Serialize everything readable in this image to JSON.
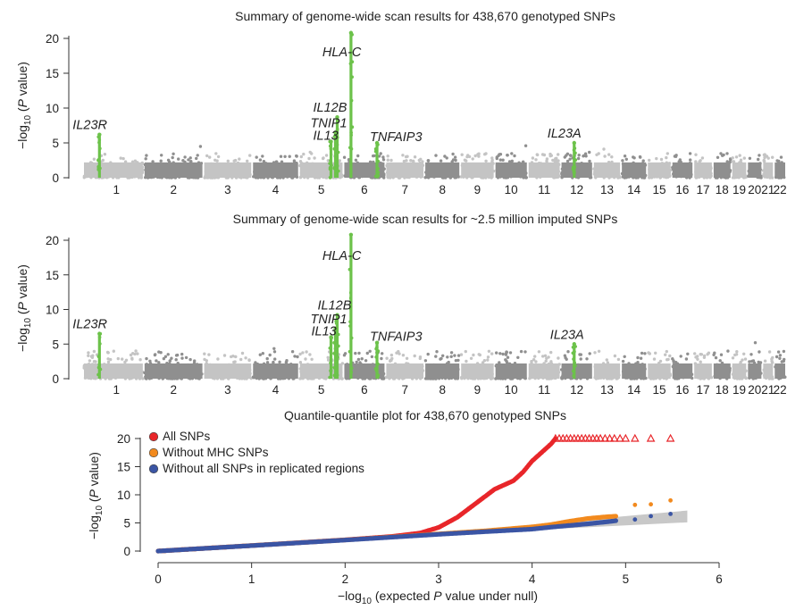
{
  "chart_data": [
    {
      "type": "scatter",
      "title": "Summary of genome-wide scan results for 438,670 genotyped SNPs",
      "ylabel_main": "−log",
      "ylabel_sub": "10",
      "ylabel_rest_open": " (",
      "ylabel_italic": "P",
      "ylabel_rest_close": " value)",
      "ylim": [
        0,
        21
      ],
      "yticks": [
        0,
        5,
        10,
        15,
        20
      ],
      "chromosomes": [
        "1",
        "2",
        "3",
        "4",
        "5",
        "6",
        "7",
        "8",
        "9",
        "10",
        "11",
        "12",
        "13",
        "14",
        "15",
        "16",
        "17",
        "18",
        "19",
        "20",
        "21",
        "22"
      ],
      "chrom_relative_lengths": [
        247,
        243,
        199,
        191,
        181,
        171,
        159,
        146,
        140,
        135,
        134,
        132,
        114,
        106,
        100,
        89,
        79,
        76,
        64,
        62,
        47,
        50
      ],
      "background_max_neglog10p": 3.5,
      "colors": {
        "light": "#c4c4c4",
        "dark": "#8f8f8f",
        "highlight": "#6cc24a"
      },
      "peaks": [
        {
          "gene": "IL23R",
          "chrom": 1,
          "pos": 0.27,
          "peak": 6.2
        },
        {
          "gene": "IL12B",
          "chrom": 5,
          "pos": 0.86,
          "peak": 8.7
        },
        {
          "gene": "TNIP1",
          "chrom": 5,
          "pos": 0.82,
          "peak": 6.5
        },
        {
          "gene": "IL13",
          "chrom": 5,
          "pos": 0.72,
          "peak": 5.2
        },
        {
          "gene": "HLA-C",
          "chrom": 6,
          "pos": 0.18,
          "peak": 21
        },
        {
          "gene": "TNFAIP3",
          "chrom": 6,
          "pos": 0.8,
          "peak": 5.0
        },
        {
          "gene": "IL23A",
          "chrom": 12,
          "pos": 0.42,
          "peak": 5.0
        }
      ]
    },
    {
      "type": "scatter",
      "title": "Summary of genome-wide scan results for ~2.5 million imputed SNPs",
      "ylabel_main": "−log",
      "ylabel_sub": "10",
      "ylabel_rest_open": " (",
      "ylabel_italic": "P",
      "ylabel_rest_close": " value)",
      "ylim": [
        0,
        21
      ],
      "yticks": [
        0,
        5,
        10,
        15,
        20
      ],
      "chromosomes": [
        "1",
        "2",
        "3",
        "4",
        "5",
        "6",
        "7",
        "8",
        "9",
        "10",
        "11",
        "12",
        "13",
        "14",
        "15",
        "16",
        "17",
        "18",
        "19",
        "20",
        "21",
        "22"
      ],
      "chrom_relative_lengths": [
        247,
        243,
        199,
        191,
        181,
        171,
        159,
        146,
        140,
        135,
        134,
        132,
        114,
        106,
        100,
        89,
        79,
        76,
        64,
        62,
        47,
        50
      ],
      "background_max_neglog10p": 4.0,
      "colors": {
        "light": "#c4c4c4",
        "dark": "#8f8f8f",
        "highlight": "#6cc24a"
      },
      "peaks": [
        {
          "gene": "IL23R",
          "chrom": 1,
          "pos": 0.27,
          "peak": 6.5
        },
        {
          "gene": "IL12B",
          "chrom": 5,
          "pos": 0.86,
          "peak": 9.2
        },
        {
          "gene": "TNIP1",
          "chrom": 5,
          "pos": 0.82,
          "peak": 7.2
        },
        {
          "gene": "IL13",
          "chrom": 5,
          "pos": 0.72,
          "peak": 6.0
        },
        {
          "gene": "HLA-C",
          "chrom": 6,
          "pos": 0.18,
          "peak": 21
        },
        {
          "gene": "TNFAIP3",
          "chrom": 6,
          "pos": 0.8,
          "peak": 5.2
        },
        {
          "gene": "IL23A",
          "chrom": 12,
          "pos": 0.42,
          "peak": 5.0
        }
      ]
    },
    {
      "type": "scatter",
      "title": "Quantile-quantile plot for 438,670 genotyped SNPs",
      "xlabel_main": "−log",
      "xlabel_sub": "10",
      "xlabel_rest_open": " (expected ",
      "xlabel_italic": "P",
      "xlabel_rest_close": " value under null)",
      "ylabel_main": "−log",
      "ylabel_sub": "10",
      "ylabel_rest_open": " (",
      "ylabel_italic": "P",
      "ylabel_rest_close": " value)",
      "xlim": [
        0,
        6
      ],
      "ylim": [
        0,
        21
      ],
      "xticks": [
        0,
        1,
        2,
        3,
        4,
        5,
        6
      ],
      "yticks": [
        0,
        5,
        10,
        15,
        20
      ],
      "legend_placement": "top-left",
      "null_band": {
        "color": "#c8c8c8",
        "x_end": 5.66,
        "y_low": 5.1,
        "y_high": 7.2
      },
      "series": [
        {
          "name": "All SNPs",
          "color": "#e8262a",
          "curve": [
            [
              0,
              0
            ],
            [
              1,
              0.98
            ],
            [
              2,
              2.0
            ],
            [
              2.5,
              2.6
            ],
            [
              2.8,
              3.2
            ],
            [
              3.0,
              4.2
            ],
            [
              3.2,
              6.0
            ],
            [
              3.4,
              8.5
            ],
            [
              3.6,
              11.0
            ],
            [
              3.8,
              12.5
            ],
            [
              3.9,
              14.0
            ],
            [
              4.0,
              16.0
            ],
            [
              4.1,
              17.5
            ],
            [
              4.2,
              19.0
            ],
            [
              4.25,
              20.0
            ]
          ],
          "capped_y": 20,
          "capped_x": [
            4.25,
            4.29,
            4.33,
            4.37,
            4.41,
            4.45,
            4.49,
            4.53,
            4.57,
            4.61,
            4.65,
            4.69,
            4.73,
            4.78,
            4.83,
            4.88,
            4.94,
            5.0,
            5.1,
            5.27,
            5.48
          ]
        },
        {
          "name": "Without MHC SNPs",
          "color": "#f28a1e",
          "curve": [
            [
              0,
              0
            ],
            [
              1,
              0.98
            ],
            [
              2,
              1.98
            ],
            [
              3,
              3.05
            ],
            [
              3.5,
              3.6
            ],
            [
              4,
              4.3
            ],
            [
              4.2,
              4.7
            ],
            [
              4.4,
              5.3
            ],
            [
              4.6,
              5.8
            ],
            [
              4.8,
              6.1
            ],
            [
              4.9,
              6.2
            ]
          ],
          "tail": [
            [
              5.1,
              8.2
            ],
            [
              5.27,
              8.3
            ],
            [
              5.48,
              9.0
            ]
          ]
        },
        {
          "name": "Without all SNPs in replicated regions",
          "color": "#3b55a4",
          "curve": [
            [
              0,
              0
            ],
            [
              1,
              0.97
            ],
            [
              2,
              1.96
            ],
            [
              3,
              2.98
            ],
            [
              3.5,
              3.45
            ],
            [
              4,
              3.9
            ],
            [
              4.2,
              4.25
            ],
            [
              4.4,
              4.55
            ],
            [
              4.6,
              4.85
            ],
            [
              4.8,
              5.2
            ],
            [
              4.9,
              5.4
            ]
          ],
          "tail": [
            [
              5.1,
              5.6
            ],
            [
              5.27,
              6.2
            ],
            [
              5.48,
              6.6
            ]
          ]
        }
      ]
    }
  ]
}
